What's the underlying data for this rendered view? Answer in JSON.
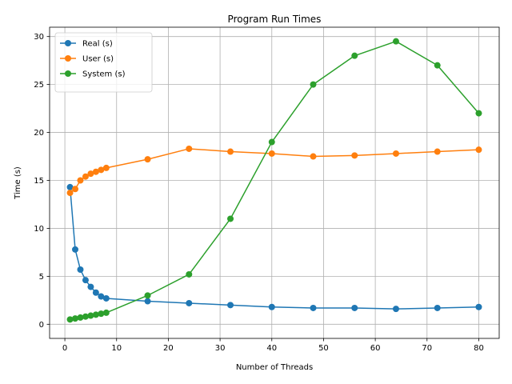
{
  "chart_data": {
    "type": "line",
    "title": "Program Run Times",
    "xlabel": "Number of Threads",
    "ylabel": "Time (s)",
    "xlim": [
      -2.95,
      83.95
    ],
    "ylim": [
      -1.475,
      30.975
    ],
    "xticks": [
      0,
      10,
      20,
      30,
      40,
      50,
      60,
      70,
      80
    ],
    "yticks": [
      0,
      5,
      10,
      15,
      20,
      25,
      30
    ],
    "grid": true,
    "legend_position": "upper-left",
    "x": [
      1,
      2,
      3,
      4,
      5,
      6,
      7,
      8,
      16,
      24,
      32,
      40,
      48,
      56,
      64,
      72,
      80
    ],
    "series": [
      {
        "name": "Real (s)",
        "color": "#1f77b4",
        "values": [
          14.3,
          7.8,
          5.7,
          4.6,
          3.9,
          3.3,
          2.9,
          2.7,
          2.4,
          2.2,
          2.0,
          1.8,
          1.7,
          1.7,
          1.6,
          1.7,
          1.8
        ]
      },
      {
        "name": "User (s)",
        "color": "#ff7f0e",
        "values": [
          13.7,
          14.1,
          15.0,
          15.4,
          15.7,
          15.9,
          16.1,
          16.3,
          17.2,
          18.3,
          18.0,
          17.8,
          17.5,
          17.6,
          17.8,
          18.0,
          18.2
        ]
      },
      {
        "name": "System (s)",
        "color": "#2ca02c",
        "values": [
          0.5,
          0.6,
          0.7,
          0.8,
          0.9,
          1.0,
          1.1,
          1.2,
          3.0,
          5.2,
          11.0,
          19.0,
          25.0,
          28.0,
          29.5,
          27.0,
          22.0
        ]
      }
    ]
  }
}
